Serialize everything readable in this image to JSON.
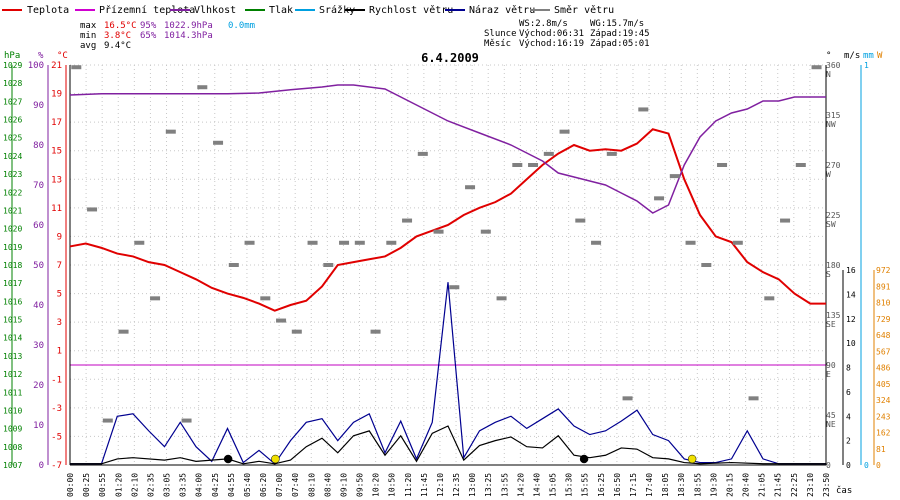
{
  "legend": [
    {
      "label": "Teplota",
      "color": "#e00000"
    },
    {
      "label": "Přízemní teplota",
      "color": "#d000d0"
    },
    {
      "label": "Vlhkost",
      "color": "#8020a0"
    },
    {
      "label": "Tlak",
      "color": "#008000"
    },
    {
      "label": "Srážky",
      "color": "#00a0e0"
    },
    {
      "label": "Rychlost větru",
      "color": "#000000"
    },
    {
      "label": "Náraz větru",
      "color": "#000090"
    },
    {
      "label": "Směr větru",
      "color": "#808080"
    }
  ],
  "stats": {
    "max": {
      "label": "max",
      "temp": "16.5°C",
      "hum": "95%",
      "press": "1022.9hPa",
      "rain": "0.0mm"
    },
    "min": {
      "label": "min",
      "temp": "3.8°C",
      "hum": "65%",
      "press": "1014.3hPa"
    },
    "avg": {
      "label": "avg",
      "temp": "9.4°C"
    }
  },
  "wind_info": {
    "ws": "WS:2.8m/s",
    "wg": "WG:15.7m/s"
  },
  "sun": {
    "label": "Slunce",
    "rise": "Východ:06:31",
    "set": "Západ:19:45"
  },
  "moon": {
    "label": "Měsíc",
    "rise": "Východ:16:19",
    "set": "Západ:05:01"
  },
  "chart_data": {
    "type": "line",
    "title": "6.4.2009",
    "xlabel": "čas",
    "units": {
      "press": "hPa",
      "hum": "%",
      "temp": "°C",
      "dir": "°",
      "speed": "m/s",
      "rain": "mm",
      "solar": "W"
    },
    "x_ticks": [
      "00:00",
      "00:25",
      "00:55",
      "01:20",
      "02:10",
      "02:35",
      "03:05",
      "03:35",
      "04:00",
      "04:25",
      "04:55",
      "05:40",
      "06:20",
      "07:00",
      "07:40",
      "08:10",
      "08:40",
      "09:10",
      "09:50",
      "10:20",
      "10:50",
      "11:20",
      "11:45",
      "12:10",
      "12:35",
      "13:00",
      "13:25",
      "13:55",
      "14:20",
      "14:40",
      "15:05",
      "15:30",
      "15:55",
      "16:25",
      "16:50",
      "17:15",
      "17:40",
      "18:05",
      "18:30",
      "18:55",
      "19:30",
      "20:15",
      "20:40",
      "21:05",
      "21:45",
      "22:25",
      "23:10",
      "23:50"
    ],
    "temp_ticks": [
      "21",
      "19",
      "17",
      "15",
      "13",
      "11",
      "9",
      "7",
      "5",
      "3",
      "1",
      "-1",
      "-3",
      "-5",
      "-7"
    ],
    "hum_ticks": [
      "100",
      "90",
      "80",
      "70",
      "60",
      "50",
      "40",
      "30",
      "20",
      "10",
      "0"
    ],
    "press_ticks": [
      "1029",
      "1028",
      "1027",
      "1026",
      "1025",
      "1024",
      "1023",
      "1022",
      "1021",
      "1020",
      "1019",
      "1018",
      "1017",
      "1016",
      "1015",
      "1014",
      "1013",
      "1012",
      "1011",
      "1010",
      "1009",
      "1008",
      "1007"
    ],
    "dir_ticks": [
      {
        "v": "360",
        "d": "N"
      },
      {
        "v": "315",
        "d": "NW"
      },
      {
        "v": "270",
        "d": "W"
      },
      {
        "v": "225",
        "d": "SW"
      },
      {
        "v": "180",
        "d": "S"
      },
      {
        "v": "135",
        "d": "SE"
      },
      {
        "v": "90",
        "d": "E"
      },
      {
        "v": "45",
        "d": "NE"
      },
      {
        "v": "0",
        "d": ""
      }
    ],
    "speed_ticks": [
      "16",
      "14",
      "12",
      "10",
      "8",
      "6",
      "4",
      "2",
      "0"
    ],
    "rain_ticks": [
      "1",
      "0"
    ],
    "solar_ticks": [
      "972",
      "891",
      "810",
      "729",
      "648",
      "567",
      "486",
      "405",
      "324",
      "243",
      "162",
      "81",
      "0"
    ],
    "ylim_temp": [
      -7,
      22
    ],
    "series": [
      {
        "name": "Teplota",
        "color": "#e00000",
        "x": [
          0,
          0.5,
          1,
          1.5,
          2,
          2.5,
          3,
          3.5,
          4,
          4.5,
          5,
          5.5,
          6,
          6.5,
          7,
          7.5,
          8,
          8.5,
          9,
          9.5,
          10,
          10.5,
          11,
          11.5,
          12,
          12.5,
          13,
          13.5,
          14,
          14.5,
          15,
          15.5,
          16,
          16.5,
          17,
          17.5,
          18,
          18.5,
          19,
          19.5,
          20,
          20.5,
          21,
          21.5,
          22,
          22.5,
          23,
          23.5,
          24
        ],
        "y": [
          8.3,
          8.5,
          8.2,
          7.8,
          7.6,
          7.2,
          7.0,
          6.5,
          6.0,
          5.4,
          5.0,
          4.7,
          4.3,
          3.8,
          4.2,
          4.5,
          5.5,
          7.0,
          7.2,
          7.4,
          7.6,
          8.2,
          9.0,
          9.4,
          9.8,
          10.5,
          11.0,
          11.4,
          12.0,
          13.0,
          14.0,
          14.8,
          15.4,
          15.0,
          15.1,
          15.0,
          15.5,
          16.5,
          16.2,
          13.0,
          10.5,
          9.0,
          8.6,
          7.2,
          6.5,
          6.0,
          5.0,
          4.3,
          4.3
        ]
      },
      {
        "name": "Vlhkost",
        "color": "#8020a0",
        "x": [
          0,
          1,
          2,
          3,
          4,
          5,
          6,
          7,
          8,
          8.5,
          9,
          10,
          11,
          12,
          13,
          14,
          14.5,
          15,
          15.5,
          16,
          16.5,
          17,
          17.5,
          18,
          18.5,
          19,
          19.5,
          20,
          20.5,
          21,
          21.5,
          22,
          22.5,
          23,
          24
        ],
        "y": [
          92.5,
          92.8,
          92.8,
          92.8,
          92.8,
          92.8,
          93.0,
          93.8,
          94.5,
          95,
          95,
          94,
          90,
          86,
          83,
          80,
          78,
          76,
          73,
          72,
          71,
          70,
          68,
          66,
          63,
          65,
          75,
          82,
          86,
          88,
          89,
          91,
          91,
          92,
          92
        ]
      },
      {
        "name": "Náraz větru",
        "color": "#000090",
        "x": [
          0,
          1,
          1.5,
          2,
          2.5,
          3,
          3.5,
          4,
          4.5,
          5,
          5.5,
          6,
          6.5,
          7,
          7.5,
          8,
          8.5,
          9,
          9.5,
          10,
          10.5,
          11,
          11.5,
          12,
          12.5,
          13,
          13.5,
          14,
          14.5,
          15,
          15.5,
          16,
          16.5,
          17,
          17.5,
          18,
          18.5,
          19,
          19.5,
          20,
          20.5,
          21,
          21.5,
          22,
          22.5,
          23,
          24
        ],
        "y": [
          0.1,
          0.1,
          4.0,
          4.2,
          2.8,
          1.5,
          3.5,
          1.5,
          0.3,
          3.0,
          0.2,
          1.2,
          0.1,
          2.0,
          3.5,
          3.8,
          2.0,
          3.5,
          4.2,
          1.0,
          3.6,
          0.5,
          3.5,
          15.0,
          0.6,
          2.8,
          3.5,
          4.0,
          3.0,
          3.8,
          4.6,
          3.2,
          2.5,
          2.8,
          3.6,
          4.5,
          2.5,
          2.0,
          0.5,
          0.2,
          0.2,
          0.5,
          2.8,
          0.5,
          0.1,
          0.1,
          0.1
        ]
      },
      {
        "name": "Rychlost větru",
        "color": "#000000",
        "x": [
          0,
          1,
          1.5,
          2,
          3,
          3.5,
          4,
          5,
          5.5,
          6,
          6.5,
          7,
          7.5,
          8,
          8.5,
          9,
          9.5,
          10,
          10.5,
          11,
          11.5,
          12,
          12.5,
          13,
          13.5,
          14,
          14.5,
          15,
          15.5,
          16,
          16.5,
          17,
          17.5,
          18,
          18.5,
          19,
          19.5,
          20,
          21,
          22,
          23,
          24
        ],
        "y": [
          0.1,
          0.1,
          0.5,
          0.6,
          0.4,
          0.6,
          0.3,
          0.5,
          0.1,
          0.3,
          0.1,
          0.4,
          1.5,
          2.2,
          1.0,
          2.4,
          2.8,
          0.8,
          2.4,
          0.3,
          2.6,
          3.2,
          0.4,
          1.6,
          2.0,
          2.3,
          1.5,
          1.4,
          2.4,
          0.8,
          0.6,
          0.8,
          1.4,
          1.3,
          0.6,
          0.5,
          0.2,
          0.1,
          0.2,
          0.1,
          0.1,
          0.1
        ]
      },
      {
        "name": "Směr větru",
        "color": "#808080",
        "x": [
          0.2,
          0.7,
          1.2,
          1.7,
          2.2,
          2.7,
          3.2,
          3.7,
          4.2,
          4.7,
          5.2,
          5.7,
          6.2,
          6.7,
          7.2,
          7.7,
          8.2,
          8.7,
          9.2,
          9.7,
          10.2,
          10.7,
          11.2,
          11.7,
          12.2,
          12.7,
          13.2,
          13.7,
          14.2,
          14.7,
          15.2,
          15.7,
          16.2,
          16.7,
          17.2,
          17.7,
          18.2,
          18.7,
          19.2,
          19.7,
          20.2,
          20.7,
          21.2,
          21.7,
          22.2,
          22.7,
          23.2,
          23.7
        ],
        "y": [
          358,
          230,
          40,
          120,
          200,
          150,
          300,
          40,
          340,
          290,
          180,
          200,
          150,
          130,
          120,
          200,
          180,
          200,
          200,
          120,
          200,
          220,
          280,
          210,
          160,
          250,
          210,
          150,
          270,
          270,
          280,
          300,
          220,
          200,
          280,
          60,
          320,
          240,
          260,
          200,
          180,
          270,
          200,
          60,
          150,
          220,
          270,
          358
        ]
      }
    ],
    "markers": [
      {
        "name": "Východ Slunce",
        "time": 6.52,
        "color": "#f0e000"
      },
      {
        "name": "Západ Slunce",
        "time": 19.75,
        "color": "#f0e000"
      },
      {
        "name": "Západ Měsíce",
        "time": 5.02,
        "color": "#000000"
      },
      {
        "name": "Východ Měsíce",
        "time": 16.32,
        "color": "#000000"
      }
    ]
  }
}
